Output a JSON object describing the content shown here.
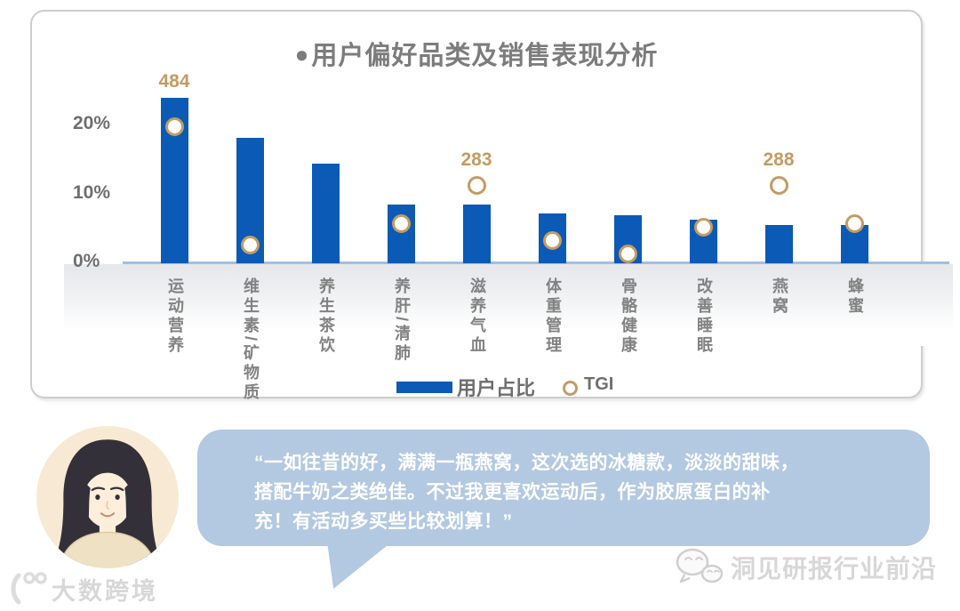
{
  "colors": {
    "bar_blue": "#0B5AB5",
    "tgi_gold": "#C49B63",
    "title_gray": "#7C7C7C",
    "tick_gray": "#6E6E6E",
    "category_gray": "#828282",
    "axis_line": "#A3C0DC",
    "band_gray": "#E5E7EA",
    "card_border": "#CDCDCD",
    "bubble_bg": "#B3C9E1",
    "bubble_text": "#FFFFFF",
    "watermark_gray": "#D7D7D7",
    "avatar_bg": "#F7E9D3",
    "avatar_hair": "#343039",
    "avatar_skin": "#FCEEDA",
    "avatar_sweater": "#EFE1C3"
  },
  "chart": {
    "title_bullet": "●",
    "title": "用户偏好品类及销售表现分析",
    "legend": {
      "bar_label": "用户占比",
      "tgi_label": "TGI"
    }
  },
  "chart_data": {
    "type": "bar",
    "title": "用户偏好品类及销售表现分析",
    "categories": [
      "运动营养",
      "维生素/矿物质",
      "养生茶饮",
      "养肝/清肺",
      "滋养气血",
      "体重管理",
      "骨骼健康",
      "改善睡眠",
      "燕窝",
      "蜂蜜"
    ],
    "series": [
      {
        "name": "用户占比",
        "type": "bar",
        "unit": "percent",
        "values": [
          24,
          18.2,
          14.5,
          8.5,
          8.5,
          7.2,
          7,
          6.3,
          5.6,
          5.6
        ]
      },
      {
        "name": "TGI",
        "type": "scatter-marker",
        "labeled_values": [
          484,
          null,
          null,
          null,
          283,
          null,
          null,
          null,
          288,
          null
        ],
        "marker_positions_pct": [
          19.8,
          2.7,
          null,
          5.8,
          11.3,
          3.3,
          1.4,
          5.2,
          11.3,
          5.7
        ],
        "note": "TGI rings plotted against hidden secondary axis; only 484, 283, 288 labeled; no ring drawn for 养生茶饮"
      }
    ],
    "y_ticks": [
      {
        "label": "20%",
        "pct": 20
      },
      {
        "label": "10%",
        "pct": 10
      },
      {
        "label": "0%",
        "pct": 0
      }
    ],
    "ylim": [
      0,
      26
    ],
    "grid": false,
    "legend_position": "bottom-center"
  },
  "quote": {
    "lines": [
      "“一如往昔的好，满满一瓶燕窝，这次选的冰糖款，淡淡的甜味，",
      "搭配牛奶之类绝佳。不过我更喜欢运动后，作为胶原蛋白的补",
      "充！有活动多买些比较划算！”"
    ]
  },
  "watermarks": {
    "left": "大数跨境",
    "right": "洞见研报行业前沿"
  }
}
